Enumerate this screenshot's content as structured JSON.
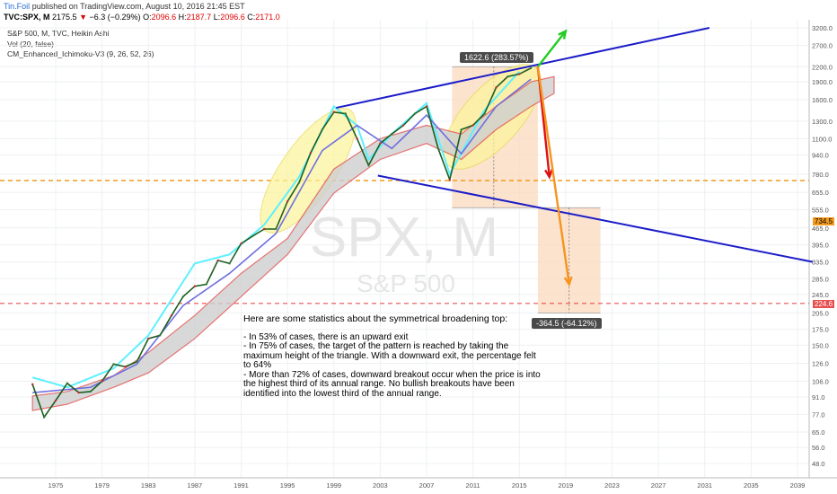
{
  "header": {
    "user": "Tin.Foil",
    "published": "published on TradingView.com, August 10, 2016 21:45 EST"
  },
  "quote": {
    "symbol": "TVC:SPX, M",
    "last": "2175.5",
    "arrow": "▼",
    "change": "−6.3 (−0.29%)",
    "O_label": "O:",
    "O": "2096.6",
    "H_label": "H:",
    "H": "2187.7",
    "L_label": "L:",
    "L": "2096.6",
    "C_label": "C:",
    "C": "2171.0"
  },
  "studies": {
    "main": "S&P 500, M, TVC, Heikin Ashi",
    "vol": "Vol (20, false)",
    "ichimoku": "CM_Enhanced_Ichimoku-V3 (9, 26, 52, 26)"
  },
  "watermark": {
    "symbol": "SPX, M",
    "name": "S&P 500"
  },
  "stats": {
    "title": "Here are some statistics about the symmetrical broadening top:",
    "lines": [
      "- In 53% of cases, there is an upward exit",
      "- In 75% of cases, the target of the pattern is reached by taking the maximum height of the triangle. With a downward exit, the percentage felt to 64%",
      "- More than 72% of cases, downward breakout occur when the price is into the highest third of its annual range. No bullish breakouts have been identified into the lowest third of the annual range."
    ]
  },
  "measure_labels": {
    "up": "1622.6 (283.57%)",
    "down": "-364.5 (-64.12%)"
  },
  "price_tags": {
    "orange": "734.5",
    "red": "224.6"
  },
  "colors": {
    "trendline": "#1c1cc8",
    "orange_level": "#f39a1e",
    "red_level": "#e85050",
    "measure_fill": "#fbd9bd",
    "ellipse_fill": "#fbf59a",
    "cyan_line": "#5ef0ff",
    "ichimoku_cloud_edge": "#e05050",
    "arrow_green": "#22cc22",
    "arrow_red": "#dd1111",
    "arrow_orange": "#f7941d"
  },
  "chart_data": {
    "type": "line",
    "title": "S&P 500, M, TVC, Heikin Ashi",
    "scale": "log",
    "x_ticks": [
      "1975",
      "1979",
      "1983",
      "1987",
      "1991",
      "1995",
      "1999",
      "2003",
      "2007",
      "2011",
      "2015",
      "2019",
      "2023",
      "2027",
      "2031",
      "2035",
      "2039"
    ],
    "y_ticks": [
      "3200.0",
      "2700.0",
      "2200.0",
      "1900.0",
      "1600.0",
      "1300.0",
      "1100.0",
      "940.0",
      "780.0",
      "655.0",
      "555.0",
      "465.0",
      "395.0",
      "335.0",
      "285.0",
      "245.0",
      "205.0",
      "175.0",
      "150.0",
      "126.0",
      "106.0",
      "91.0",
      "77.0",
      "65.0",
      "56.0",
      "48.0"
    ],
    "levels": {
      "orange_dashed": 734.5,
      "red_dashed": 224.6
    },
    "measure_up": {
      "value": 1622.6,
      "percent": "283.57%"
    },
    "measure_down": {
      "value": -364.5,
      "percent": "-64.12%"
    },
    "series": [
      {
        "values": [
          [
            1973,
            103
          ],
          [
            1974,
            75
          ],
          [
            1975,
            88
          ],
          [
            1976,
            104
          ],
          [
            1977,
            95
          ],
          [
            1978,
            96
          ],
          [
            1979,
            106
          ],
          [
            1980,
            125
          ],
          [
            1981,
            122
          ],
          [
            1982,
            128
          ],
          [
            1983,
            160
          ],
          [
            1984,
            165
          ],
          [
            1985,
            200
          ],
          [
            1986,
            240
          ],
          [
            1987,
            265
          ],
          [
            1988,
            270
          ],
          [
            1989,
            340
          ],
          [
            1990,
            330
          ],
          [
            1991,
            400
          ],
          [
            1992,
            430
          ],
          [
            1993,
            460
          ],
          [
            1994,
            460
          ],
          [
            1995,
            600
          ],
          [
            1996,
            720
          ],
          [
            1997,
            960
          ],
          [
            1998,
            1200
          ],
          [
            1999,
            1420
          ],
          [
            2000,
            1400
          ],
          [
            2001,
            1100
          ],
          [
            2002,
            850
          ],
          [
            2003,
            1050
          ],
          [
            2004,
            1150
          ],
          [
            2005,
            1250
          ],
          [
            2006,
            1400
          ],
          [
            2007,
            1500
          ],
          [
            2008,
            1000
          ],
          [
            2009,
            740
          ],
          [
            2010,
            1200
          ],
          [
            2011,
            1250
          ],
          [
            2012,
            1400
          ],
          [
            2013,
            1800
          ],
          [
            2014,
            2000
          ],
          [
            2015,
            2050
          ],
          [
            2016,
            2170
          ]
        ]
      }
    ]
  }
}
